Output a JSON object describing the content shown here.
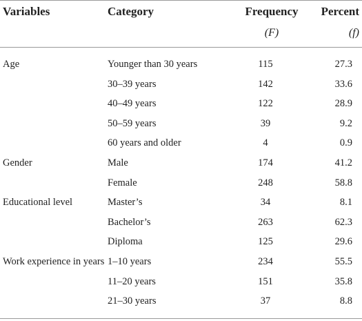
{
  "table": {
    "header": [
      {
        "label": "Variables"
      },
      {
        "label": "Category"
      },
      {
        "label": "Frequency",
        "symbol": "(F)"
      },
      {
        "label": "Percent",
        "symbol": "(f)"
      }
    ],
    "groups": [
      {
        "variable": "Age",
        "rows": [
          {
            "category": "Younger than 30 years",
            "frequency": 115,
            "percent": 27.3
          },
          {
            "category": "30–39 years",
            "frequency": 142,
            "percent": 33.6
          },
          {
            "category": "40–49 years",
            "frequency": 122,
            "percent": 28.9
          },
          {
            "category": "50–59 years",
            "frequency": 39,
            "percent": 9.2
          },
          {
            "category": "60 years and older",
            "frequency": 4,
            "percent": 0.9
          }
        ]
      },
      {
        "variable": "Gender",
        "rows": [
          {
            "category": "Male",
            "frequency": 174,
            "percent": 41.2
          },
          {
            "category": "Female",
            "frequency": 248,
            "percent": 58.8
          }
        ]
      },
      {
        "variable": "Educational level",
        "rows": [
          {
            "category": "Master’s",
            "frequency": 34,
            "percent": 8.1
          },
          {
            "category": "Bachelor’s",
            "frequency": 263,
            "percent": 62.3
          },
          {
            "category": "Diploma",
            "frequency": 125,
            "percent": 29.6
          }
        ]
      },
      {
        "variable": "Work experience in years",
        "rows": [
          {
            "category": "1–10 years",
            "frequency": 234,
            "percent": 55.5
          },
          {
            "category": "11–20 years",
            "frequency": 151,
            "percent": 35.8
          },
          {
            "category": "21–30 years",
            "frequency": 37,
            "percent": 8.8
          }
        ]
      }
    ]
  }
}
